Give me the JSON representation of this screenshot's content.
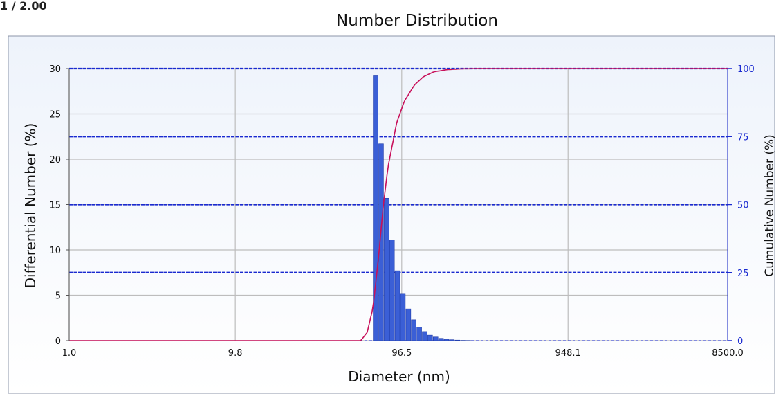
{
  "corner_text": "1 / 2.00",
  "colors": {
    "bar": "#3b5fd6",
    "bar_edge": "#1e3aa8",
    "cumulative_line": "#c8105a",
    "grid_major": "#1a2ad0",
    "grid_minor": "#bdbdbd",
    "axis_right": "#1a2ad0",
    "plot_bg_top": "#eef3fb",
    "plot_bg_bottom": "#ffffff",
    "frame": "#8c96a8"
  },
  "chart_data": {
    "type": "bar",
    "title": "Number Distribution",
    "xlabel": "Diameter (nm)",
    "ylabel": "Differential Number (%)",
    "y2label": "Cumulative Number (%)",
    "x_scale": "log",
    "xlim": [
      1.0,
      8500.0
    ],
    "ylim": [
      0,
      30
    ],
    "y2lim": [
      0,
      100
    ],
    "x_ticks": [
      1.0,
      9.8,
      96.5,
      948.1,
      8500.0
    ],
    "x_tick_labels": [
      "1.0",
      "9.8",
      "96.5",
      "948.1",
      "8500.0"
    ],
    "y_ticks": [
      0,
      5,
      10,
      15,
      20,
      25,
      30
    ],
    "y_tick_labels": [
      "0",
      "5",
      "10",
      "15",
      "20",
      "25",
      "30"
    ],
    "y2_ticks": [
      0,
      25,
      50,
      75,
      100
    ],
    "y2_tick_labels": [
      "0",
      "25",
      "50",
      "75",
      "100"
    ],
    "grid": true,
    "legend": "none",
    "series": [
      {
        "kind": "bar",
        "diameters": [
          67.7,
          73.0,
          78.7,
          84.8,
          91.4,
          98.5,
          106.2,
          114.4,
          123.3,
          132.9,
          143.2,
          154.4,
          166.4,
          179.3,
          193.2,
          208.3,
          224.4,
          241.9
        ],
        "values": [
          29.2,
          21.7,
          15.7,
          11.1,
          7.7,
          5.2,
          3.5,
          2.3,
          1.5,
          1.0,
          0.6,
          0.4,
          0.25,
          0.15,
          0.1,
          0.06,
          0.03,
          0.02
        ]
      },
      {
        "kind": "line",
        "axis": "y2",
        "x": [
          1.0,
          55.0,
          60.0,
          65.0,
          70.0,
          75.0,
          80.0,
          90.0,
          100.0,
          115.0,
          130.0,
          150.0,
          180.0,
          220.0,
          300.0,
          8500.0
        ],
        "values": [
          0,
          0,
          3,
          12,
          30,
          50,
          64,
          80,
          88,
          94,
          97,
          98.8,
          99.6,
          99.9,
          100,
          100
        ]
      }
    ]
  }
}
